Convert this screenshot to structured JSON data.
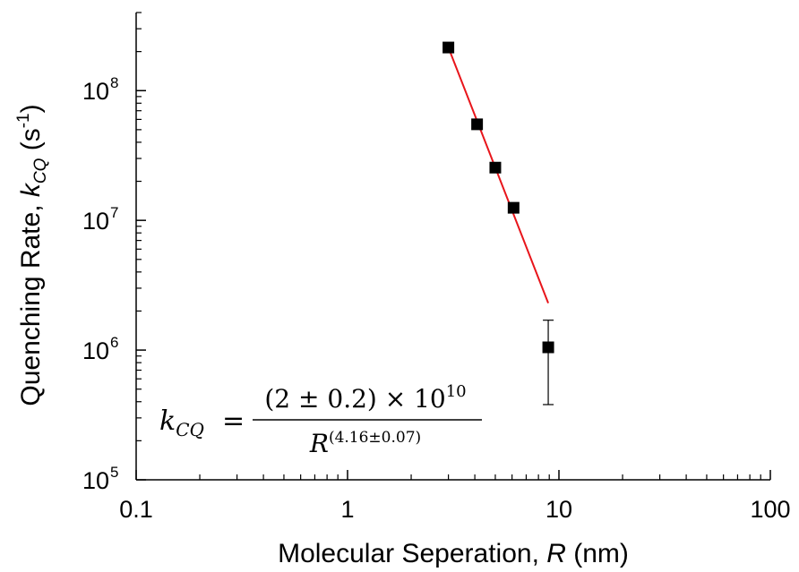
{
  "chart_data": {
    "type": "scatter",
    "xscale": "log",
    "yscale": "log",
    "xlim": [
      0.1,
      100
    ],
    "ylim": [
      100000,
      400000000
    ],
    "grid": false,
    "legend": "none",
    "x_ticks": [
      {
        "value": 0.1,
        "label": "0.1"
      },
      {
        "value": 1,
        "label": "1"
      },
      {
        "value": 10,
        "label": "10"
      },
      {
        "value": 100,
        "label": "100"
      }
    ],
    "y_ticks": [
      {
        "value": 100000,
        "base": "10",
        "exp": "5"
      },
      {
        "value": 1000000,
        "base": "10",
        "exp": "6"
      },
      {
        "value": 10000000,
        "base": "10",
        "exp": "7"
      },
      {
        "value": 100000000,
        "base": "10",
        "exp": "8"
      }
    ],
    "xlabel": {
      "main": "Molecular Seperation, ",
      "var": "R",
      "unit": " (nm)"
    },
    "ylabel": {
      "main": "Quenching Rate, ",
      "var": "k",
      "sub": "CQ",
      "unit": " (s",
      "unit_exp": "-1",
      "close": ")"
    },
    "series": [
      {
        "type": "scatter",
        "marker": "square",
        "color": "#000000",
        "points": [
          {
            "x": 3.0,
            "y": 215000000
          },
          {
            "x": 4.1,
            "y": 55000000
          },
          {
            "x": 5.0,
            "y": 25500000
          },
          {
            "x": 6.1,
            "y": 12500000
          },
          {
            "x": 8.9,
            "y": 1050000,
            "err_low": 380000,
            "err_high": 1700000
          }
        ]
      },
      {
        "type": "line",
        "color": "#e8151b",
        "x_start": 3.0,
        "x_end": 8.9,
        "y_start": 215000000,
        "y_end": 2300000
      }
    ],
    "annotation": {
      "lhs_var": "k",
      "lhs_sub": "CQ",
      "eq": "=",
      "numerator": "(2 ± 0.2) × 10",
      "numerator_exp": "10",
      "denominator_var": "R",
      "denominator_exp": "(4.16±0.07)"
    }
  }
}
